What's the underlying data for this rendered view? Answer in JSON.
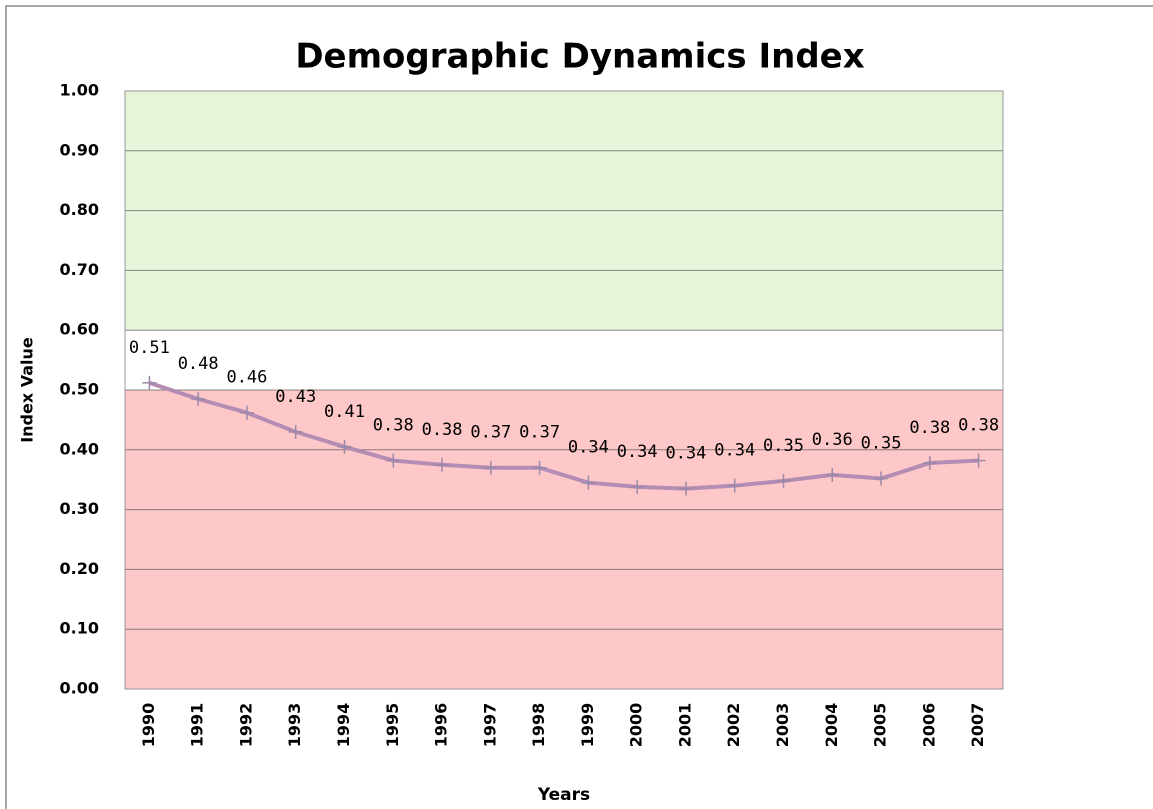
{
  "chart_data": {
    "type": "line",
    "title": "Demographic Dynamics Index",
    "x_label": "Years",
    "y_label": "Index Value",
    "categories": [
      "1990",
      "1991",
      "1992",
      "1993",
      "1994",
      "1995",
      "1996",
      "1997",
      "1998",
      "1999",
      "2000",
      "2001",
      "2002",
      "2003",
      "2004",
      "2005",
      "2006",
      "2007"
    ],
    "series": [
      {
        "name": "Index Value",
        "color": "#b48cb4",
        "values": [
          0.512,
          0.485,
          0.462,
          0.43,
          0.405,
          0.382,
          0.375,
          0.37,
          0.37,
          0.345,
          0.338,
          0.335,
          0.34,
          0.348,
          0.358,
          0.352,
          0.378,
          0.382
        ],
        "value_labels": [
          "0.51",
          "0.48",
          "0.46",
          "0.43",
          "0.41",
          "0.38",
          "0.38",
          "0.37",
          "0.37",
          "0.34",
          "0.34",
          "0.34",
          "0.34",
          "0.35",
          "0.36",
          "0.35",
          "0.38",
          "0.38"
        ]
      }
    ],
    "ylim": [
      0,
      1
    ],
    "yticks": [
      {
        "value": 0,
        "label": "0.00"
      },
      {
        "value": 0.1,
        "label": "0.10"
      },
      {
        "value": 0.2,
        "label": "0.20"
      },
      {
        "value": 0.3,
        "label": "0.30"
      },
      {
        "value": 0.4,
        "label": "0.40"
      },
      {
        "value": 0.5,
        "label": "0.50"
      },
      {
        "value": 0.6,
        "label": "0.60"
      },
      {
        "value": 0.7,
        "label": "0.70"
      },
      {
        "value": 0.8,
        "label": "0.80"
      },
      {
        "value": 0.9,
        "label": "0.90"
      },
      {
        "value": 1,
        "label": "1.00"
      }
    ],
    "bands": [
      {
        "from": 0,
        "to": 0.5,
        "color": "#ffc8c8"
      },
      {
        "from": 0.6,
        "to": 1,
        "color": "#e6f4d9"
      }
    ],
    "grid": true
  }
}
